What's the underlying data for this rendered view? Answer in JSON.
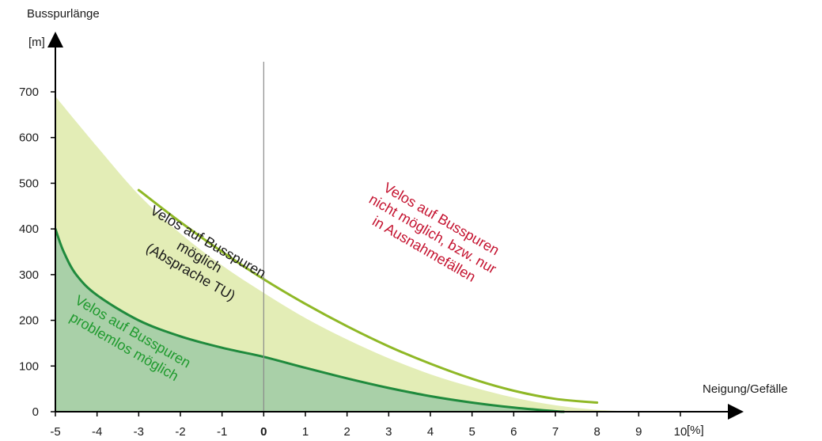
{
  "chart_data": {
    "type": "area",
    "y_title": "Busspurlänge",
    "y_unit": "[m]",
    "x_title": "Neigung/Gefälle",
    "x_unit": "[%]",
    "xlim": [
      -5,
      10
    ],
    "ylim": [
      0,
      700
    ],
    "x_ticks": [
      -5,
      -4,
      -3,
      -2,
      -1,
      0,
      1,
      2,
      3,
      4,
      5,
      6,
      7,
      8,
      9,
      10
    ],
    "x_tick_labels": [
      "-5",
      "-4",
      "-3",
      "-2",
      "-1",
      "0",
      "1",
      "2",
      "3",
      "4",
      "5",
      "6",
      "7",
      "8",
      "9",
      "10"
    ],
    "y_ticks": [
      0,
      100,
      200,
      300,
      400,
      500,
      600,
      700
    ],
    "y_tick_labels": [
      "0",
      "100",
      "200",
      "300",
      "400",
      "500",
      "600",
      "700"
    ],
    "zero_line_x": 0,
    "series": [
      {
        "color": "#e3edb6",
        "points": [
          [
            -5,
            690
          ],
          [
            -4,
            580
          ],
          [
            -3,
            475
          ],
          [
            -2,
            390
          ],
          [
            -1,
            320
          ],
          [
            0,
            260
          ],
          [
            1,
            205
          ],
          [
            2,
            158
          ],
          [
            3,
            117
          ],
          [
            4,
            82
          ],
          [
            5,
            54
          ],
          [
            6,
            31
          ],
          [
            7,
            14
          ],
          [
            8,
            4
          ],
          [
            9,
            0
          ]
        ]
      },
      {
        "color": "#8fb826",
        "points": [
          [
            -3,
            485
          ],
          [
            -2,
            415
          ],
          [
            -1,
            350
          ],
          [
            0,
            290
          ],
          [
            1,
            236
          ],
          [
            2,
            187
          ],
          [
            3,
            143
          ],
          [
            4,
            105
          ],
          [
            5,
            72
          ],
          [
            6,
            46
          ],
          [
            7,
            28
          ],
          [
            8,
            20
          ]
        ]
      },
      {
        "color": "#1f8a3d",
        "fill": "#a9d0a8",
        "points": [
          [
            -5,
            400
          ],
          [
            -4.8,
            350
          ],
          [
            -4.5,
            300
          ],
          [
            -4,
            255
          ],
          [
            -3,
            200
          ],
          [
            -2,
            165
          ],
          [
            -1,
            140
          ],
          [
            0,
            120
          ],
          [
            1,
            96
          ],
          [
            2,
            73
          ],
          [
            3,
            52
          ],
          [
            4,
            34
          ],
          [
            5,
            20
          ],
          [
            6,
            9
          ],
          [
            7,
            1
          ],
          [
            7.2,
            0
          ]
        ]
      }
    ],
    "annotations": [
      {
        "lines": [
          "Velos auf Busspuren",
          "nicht möglich, bzw. nur",
          "in Ausnahmefällen"
        ],
        "color": "#c4122f",
        "x": 4,
        "y": 380,
        "rotation": 30
      },
      {
        "lines": [
          "Velos auf Busspuren",
          "möglich",
          "(Absprache TU)"
        ],
        "color": "#1a1a1a",
        "x": -1.6,
        "y": 330,
        "rotation": 30
      },
      {
        "lines": [
          "Velos auf Busspuren",
          "problemlos möglich"
        ],
        "color": "#1f9a2e",
        "x": -3.3,
        "y": 150,
        "rotation": 30
      }
    ]
  }
}
